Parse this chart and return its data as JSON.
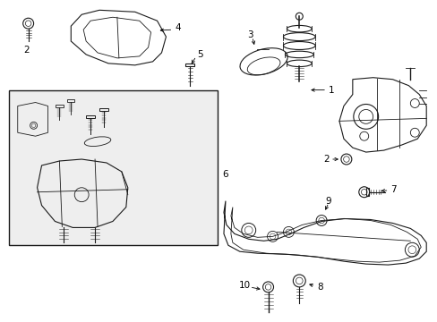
{
  "bg_color": "#ffffff",
  "line_color": "#1a1a1a",
  "inset_bg": "#f0f0f0",
  "fig_w": 4.89,
  "fig_h": 3.6,
  "dpi": 100
}
